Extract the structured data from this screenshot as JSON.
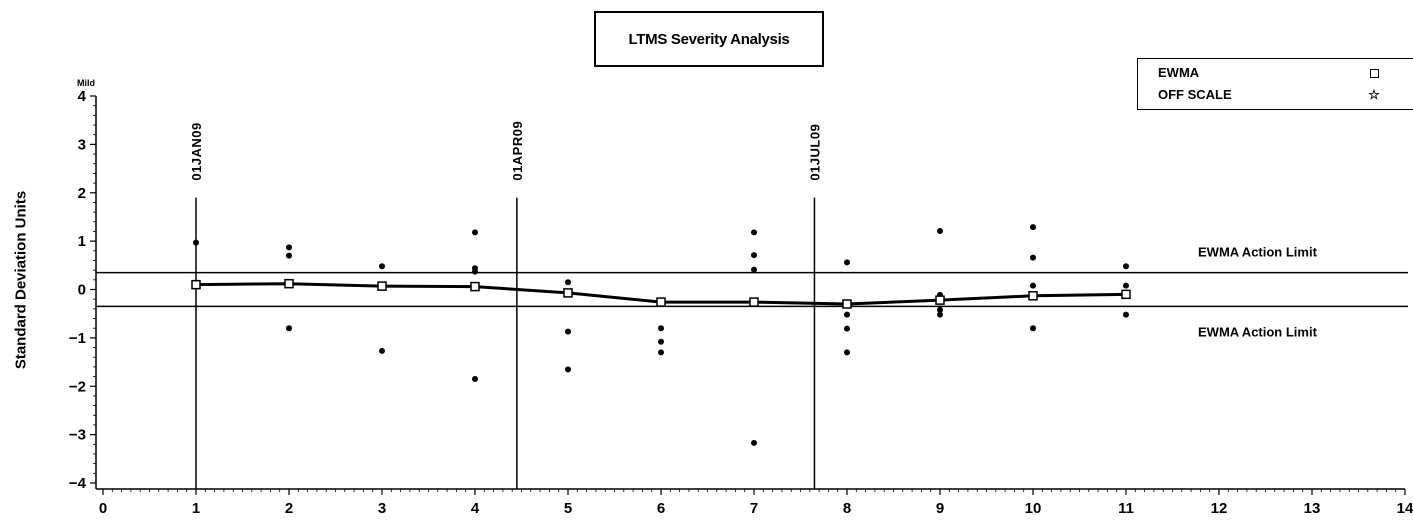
{
  "chart_data": {
    "type": "scatter",
    "title": "LTMS Severity Analysis",
    "ylabel": "Standard Deviation Units",
    "top_annotation": "Mild",
    "xlim": [
      0,
      14
    ],
    "ylim": [
      -4,
      4
    ],
    "x_ticks": [
      0,
      1,
      2,
      3,
      4,
      5,
      6,
      7,
      8,
      9,
      10,
      11,
      12,
      13,
      14
    ],
    "y_ticks": [
      4,
      3,
      2,
      1,
      0,
      -1,
      -2,
      -3,
      -4
    ],
    "y_tick_labels": [
      "4",
      "3",
      "2",
      "1",
      "0",
      "−1",
      "−2",
      "−3",
      "−4"
    ],
    "legend": [
      {
        "name": "EWMA",
        "symbol": "square-icon"
      },
      {
        "name": "OFF SCALE",
        "symbol": "star-icon"
      }
    ],
    "legend_position": "top-right",
    "reference_lines": [
      {
        "y": 0.35,
        "label": "EWMA Action Limit"
      },
      {
        "y": -0.35,
        "label": "EWMA Action Limit"
      }
    ],
    "date_markers": [
      {
        "x": 1,
        "label": "01JAN09"
      },
      {
        "x": 4.45,
        "label": "01APR09"
      },
      {
        "x": 7.65,
        "label": "01JUL09"
      }
    ],
    "points": [
      {
        "x": 1,
        "y": 0.97
      },
      {
        "x": 1,
        "y": 0.12
      },
      {
        "x": 2,
        "y": 0.87
      },
      {
        "x": 2,
        "y": 0.7
      },
      {
        "x": 2,
        "y": -0.8
      },
      {
        "x": 3,
        "y": 0.48
      },
      {
        "x": 3,
        "y": 0.1
      },
      {
        "x": 3,
        "y": 0.05
      },
      {
        "x": 3,
        "y": -1.27
      },
      {
        "x": 4,
        "y": 1.18
      },
      {
        "x": 4,
        "y": 0.44
      },
      {
        "x": 4,
        "y": 0.37
      },
      {
        "x": 4,
        "y": -1.85
      },
      {
        "x": 5,
        "y": 0.15
      },
      {
        "x": 5,
        "y": -0.87
      },
      {
        "x": 5,
        "y": -1.65
      },
      {
        "x": 6,
        "y": -0.8
      },
      {
        "x": 6,
        "y": -1.08
      },
      {
        "x": 6,
        "y": -1.3
      },
      {
        "x": 7,
        "y": 1.18
      },
      {
        "x": 7,
        "y": 0.71
      },
      {
        "x": 7,
        "y": 0.41
      },
      {
        "x": 7,
        "y": -3.17
      },
      {
        "x": 8,
        "y": 0.56
      },
      {
        "x": 8,
        "y": -0.52
      },
      {
        "x": 8,
        "y": -0.81
      },
      {
        "x": 8,
        "y": -1.3
      },
      {
        "x": 9,
        "y": 1.21
      },
      {
        "x": 9,
        "y": -0.11
      },
      {
        "x": 9,
        "y": -0.2
      },
      {
        "x": 9,
        "y": -0.42
      },
      {
        "x": 9,
        "y": -0.52
      },
      {
        "x": 10,
        "y": 1.29
      },
      {
        "x": 10,
        "y": 0.66
      },
      {
        "x": 10,
        "y": 0.08
      },
      {
        "x": 10,
        "y": -0.8
      },
      {
        "x": 11,
        "y": 0.48
      },
      {
        "x": 11,
        "y": 0.08
      },
      {
        "x": 11,
        "y": -0.52
      }
    ],
    "series": [
      {
        "name": "EWMA",
        "x": [
          1,
          2,
          3,
          4,
          5,
          6,
          7,
          8,
          9,
          10,
          11
        ],
        "values": [
          0.1,
          0.12,
          0.07,
          0.06,
          -0.07,
          -0.26,
          -0.26,
          -0.3,
          -0.22,
          -0.13,
          -0.1
        ]
      }
    ],
    "grid": false
  }
}
